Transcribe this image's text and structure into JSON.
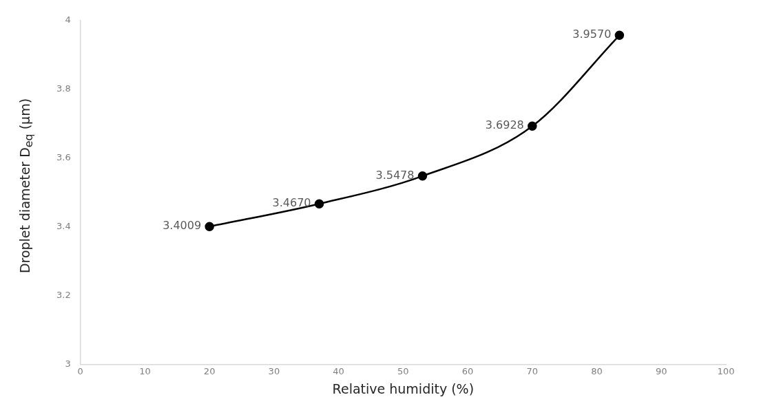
{
  "chart_data": {
    "type": "line",
    "xlabel": "Relative humidity (%)",
    "ylabel": "Droplet diameter D$_{eq}$ (µm)",
    "x": [
      20,
      37,
      53,
      70,
      83.5
    ],
    "series": [
      {
        "color": "#000000",
        "values": [
          3.4009,
          3.467,
          3.5478,
          3.6928,
          3.957
        ],
        "value_labels": [
          "3.4009",
          "3.4670",
          "3.5478",
          "3.6928",
          "3.9570"
        ]
      }
    ],
    "xlim": [
      0,
      100
    ],
    "xticks": [
      0,
      10,
      20,
      30,
      40,
      50,
      60,
      70,
      80,
      90,
      100
    ],
    "ylim": [
      3,
      4
    ],
    "yticks": [
      3,
      3.2,
      3.4,
      3.6,
      3.8,
      4
    ],
    "marker": "circle",
    "line_style": "solid",
    "grid": false,
    "legend": false
  }
}
